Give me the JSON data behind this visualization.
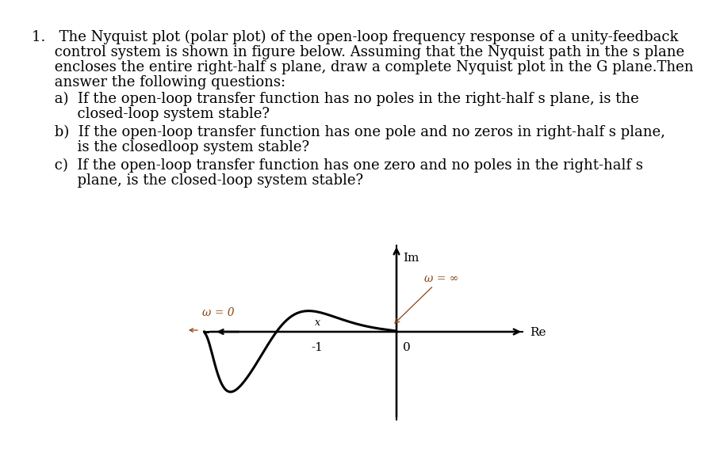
{
  "bg_color": "#ffffff",
  "text_color": "#000000",
  "curve_color": "#000000",
  "axis_color": "#000000",
  "annotation_color": "#8B4513",
  "label_Im": "Im",
  "label_Re": "Re",
  "label_omega_inf": "ω = ∞",
  "label_omega_0": "ω = 0",
  "main_text_lines": [
    "1.   The Nyquist plot (polar plot) of the open-loop frequency response of a unity-feedback",
    "     control system is shown in figure below. Assuming that the Nyquist path in the s plane",
    "     encloses the entire right-half s plane, draw a complete Nyquist plot in the G plane.Then",
    "     answer the following questions:"
  ],
  "qa_lines": [
    [
      "     a)  If the open-loop transfer function has no poles in the right-half s plane, is the",
      "          closed-loop system stable?"
    ],
    [
      "     b)  If the open-loop transfer function has one pole and no zeros in right-half s plane,",
      "          is the closedloop system stable?"
    ],
    [
      "     c)  If the open-loop transfer function has one zero and no poles in the right-half s",
      "          plane, is the closed-loop system stable?"
    ]
  ],
  "fontsize_main": 13,
  "fontsize_plot": 11,
  "fontsize_annot": 10
}
